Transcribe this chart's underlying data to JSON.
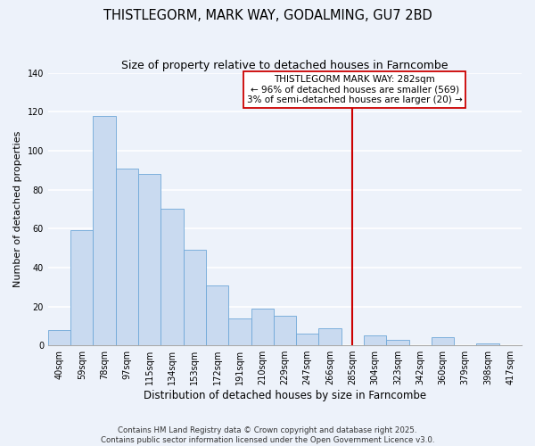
{
  "title": "THISTLEGORM, MARK WAY, GODALMING, GU7 2BD",
  "subtitle": "Size of property relative to detached houses in Farncombe",
  "xlabel": "Distribution of detached houses by size in Farncombe",
  "ylabel": "Number of detached properties",
  "categories": [
    "40sqm",
    "59sqm",
    "78sqm",
    "97sqm",
    "115sqm",
    "134sqm",
    "153sqm",
    "172sqm",
    "191sqm",
    "210sqm",
    "229sqm",
    "247sqm",
    "266sqm",
    "285sqm",
    "304sqm",
    "323sqm",
    "342sqm",
    "360sqm",
    "379sqm",
    "398sqm",
    "417sqm"
  ],
  "values": [
    8,
    59,
    118,
    91,
    88,
    70,
    49,
    31,
    14,
    19,
    15,
    6,
    9,
    0,
    5,
    3,
    0,
    4,
    0,
    1,
    0
  ],
  "bar_color": "#c9daf0",
  "bar_edge_color": "#6fa8d8",
  "vline_x_index": 13,
  "vline_color": "#cc0000",
  "annotation_title": "THISTLEGORM MARK WAY: 282sqm",
  "annotation_line1": "← 96% of detached houses are smaller (569)",
  "annotation_line2": "3% of semi-detached houses are larger (20) →",
  "annotation_box_color": "#ffffff",
  "annotation_box_edge": "#cc0000",
  "ylim": [
    0,
    140
  ],
  "yticks": [
    0,
    20,
    40,
    60,
    80,
    100,
    120,
    140
  ],
  "footnote1": "Contains HM Land Registry data © Crown copyright and database right 2025.",
  "footnote2": "Contains public sector information licensed under the Open Government Licence v3.0.",
  "bg_color": "#edf2fa",
  "grid_color": "#ffffff",
  "title_fontsize": 10.5,
  "subtitle_fontsize": 9,
  "xlabel_fontsize": 8.5,
  "ylabel_fontsize": 8,
  "tick_fontsize": 7,
  "annot_fontsize": 7.5,
  "footnote_fontsize": 6.2
}
